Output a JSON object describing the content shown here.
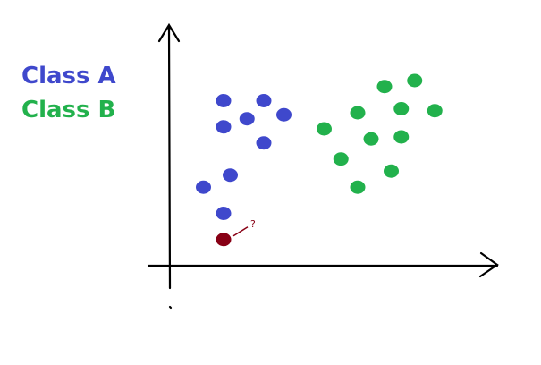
{
  "chart_data": {
    "type": "scatter",
    "title": "",
    "xlabel": "",
    "ylabel": "",
    "grid": false,
    "legend_placement": "top-left",
    "series": [
      {
        "name": "Class A",
        "color": "#3f48cc",
        "points": [
          {
            "x": 1.6,
            "y": 8.2
          },
          {
            "x": 2.8,
            "y": 8.2
          },
          {
            "x": 2.3,
            "y": 7.3
          },
          {
            "x": 3.4,
            "y": 7.5
          },
          {
            "x": 1.6,
            "y": 6.9
          },
          {
            "x": 2.8,
            "y": 6.1
          },
          {
            "x": 1.8,
            "y": 4.5
          },
          {
            "x": 1.0,
            "y": 3.9
          },
          {
            "x": 1.6,
            "y": 2.6
          }
        ]
      },
      {
        "name": "Class B",
        "color": "#22b14c",
        "points": [
          {
            "x": 6.4,
            "y": 8.9
          },
          {
            "x": 7.3,
            "y": 9.2
          },
          {
            "x": 5.6,
            "y": 7.6
          },
          {
            "x": 6.9,
            "y": 7.8
          },
          {
            "x": 7.9,
            "y": 7.7
          },
          {
            "x": 4.6,
            "y": 6.8
          },
          {
            "x": 6.0,
            "y": 6.3
          },
          {
            "x": 6.9,
            "y": 6.4
          },
          {
            "x": 5.1,
            "y": 5.3
          },
          {
            "x": 6.6,
            "y": 4.7
          },
          {
            "x": 5.6,
            "y": 3.9
          }
        ]
      }
    ],
    "query_point": {
      "x": 1.6,
      "y": 1.3,
      "color": "#880015",
      "label": "?"
    },
    "xlim": [
      0,
      10
    ],
    "ylim": [
      0,
      12
    ]
  }
}
